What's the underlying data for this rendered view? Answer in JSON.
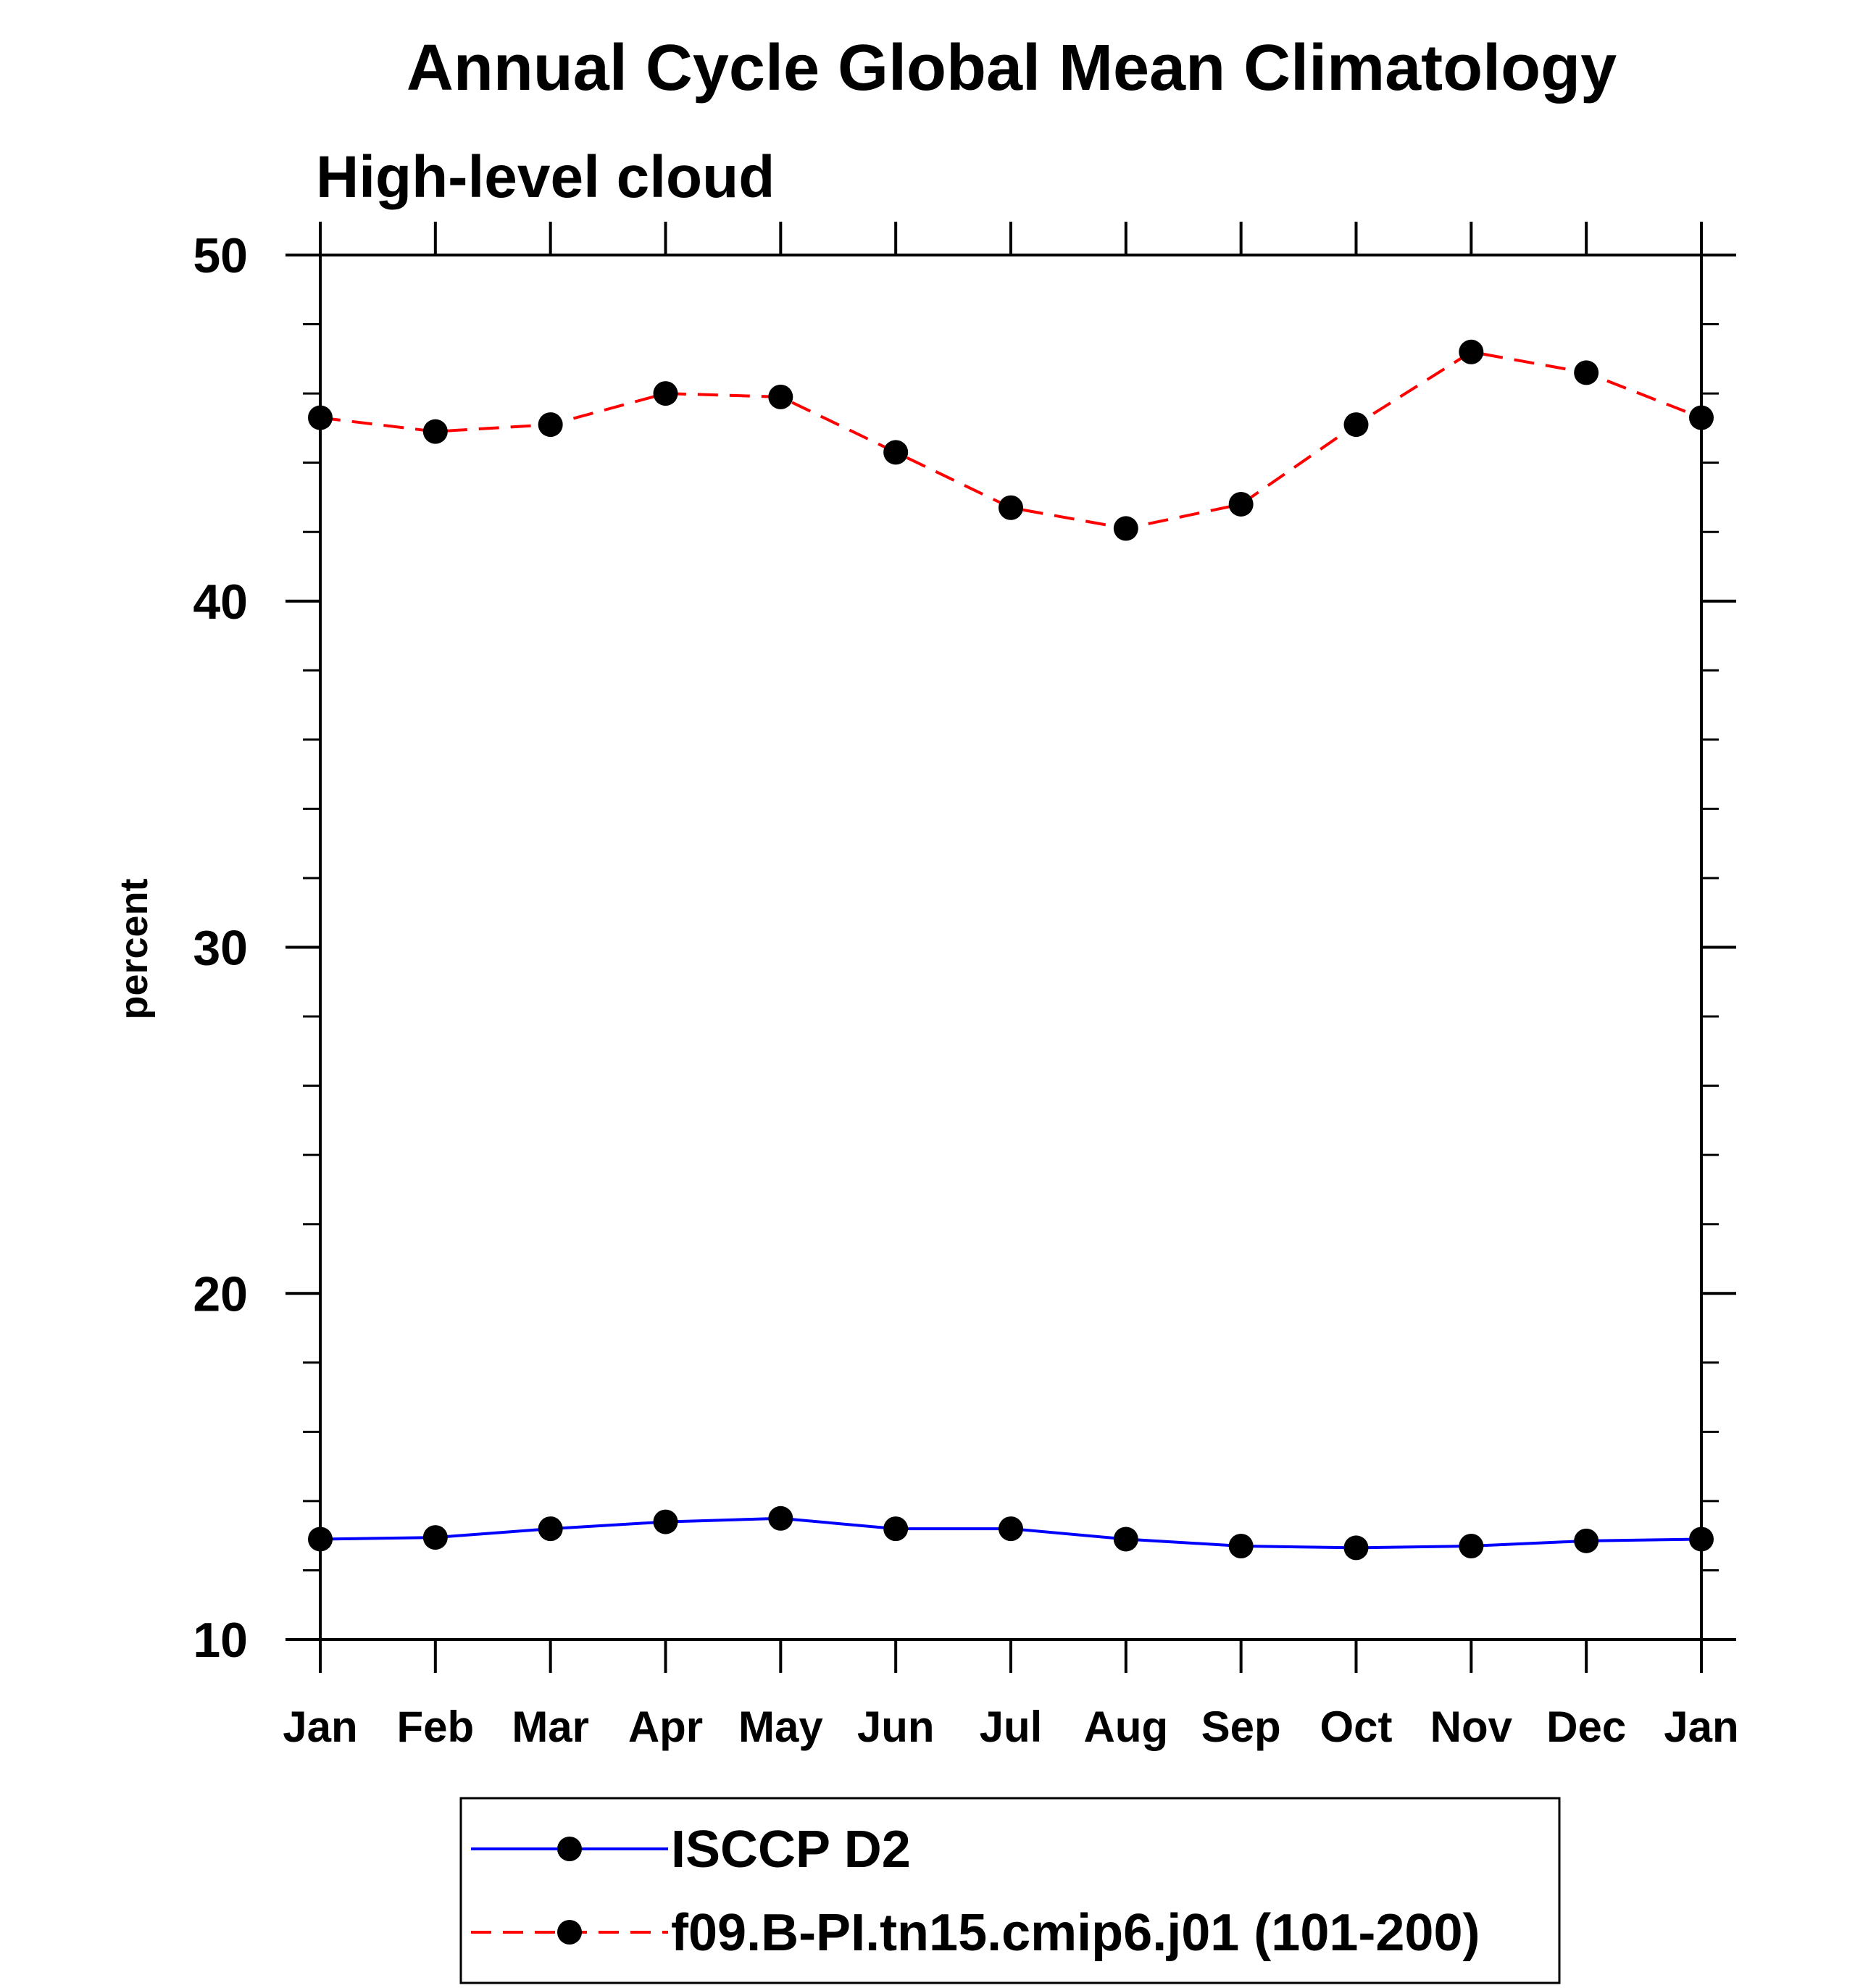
{
  "chart_data": {
    "type": "line",
    "title": "Annual Cycle Global Mean Climatology",
    "subtitle": "High-level cloud",
    "xlabel": "",
    "ylabel": "percent",
    "categories": [
      "Jan",
      "Feb",
      "Mar",
      "Apr",
      "May",
      "Jun",
      "Jul",
      "Aug",
      "Sep",
      "Oct",
      "Nov",
      "Dec",
      "Jan"
    ],
    "ylim": [
      10,
      50
    ],
    "yticks": [
      10,
      20,
      30,
      40,
      50
    ],
    "yticks_minor_step": 2,
    "grid": false,
    "legend_position": "bottom-center",
    "series": [
      {
        "name": "ISCCP D2",
        "color": "#0000ff",
        "line_style": "solid",
        "marker": "filled-circle",
        "marker_color": "#000000",
        "values": [
          12.9,
          12.95,
          13.2,
          13.4,
          13.5,
          13.2,
          13.2,
          12.9,
          12.7,
          12.65,
          12.7,
          12.85,
          12.9
        ]
      },
      {
        "name": "f09.B-PI.tn15.cmip6.j01 (101-200)",
        "color": "#ff0000",
        "line_style": "dashed",
        "marker": "filled-circle",
        "marker_color": "#000000",
        "values": [
          45.3,
          44.9,
          45.1,
          46.0,
          45.9,
          44.3,
          42.7,
          42.1,
          42.8,
          45.1,
          47.2,
          46.6,
          45.3
        ]
      }
    ]
  }
}
